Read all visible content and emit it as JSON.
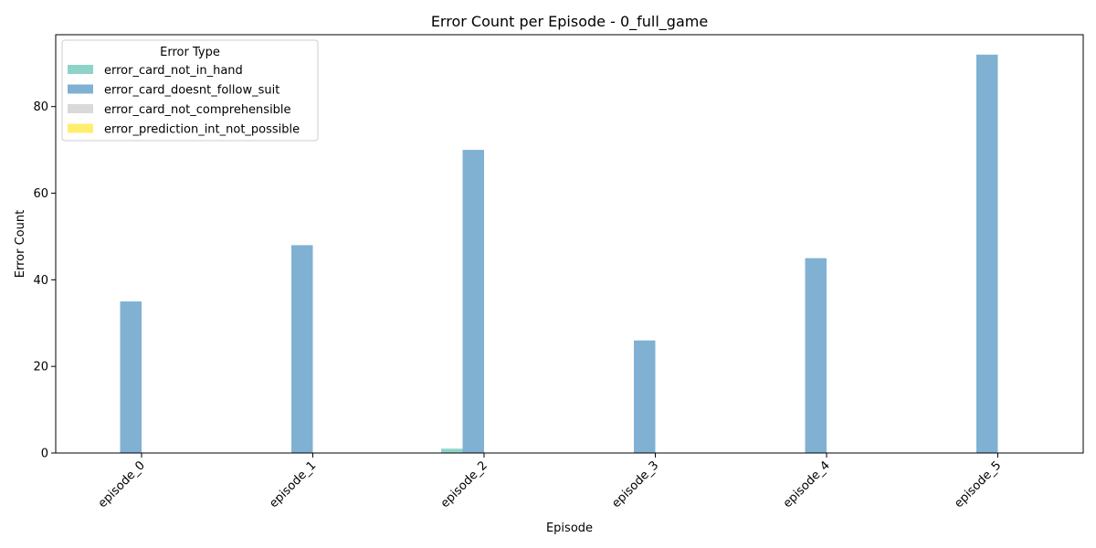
{
  "chart_data": {
    "type": "bar",
    "title": "Error Count per Episode - 0_full_game",
    "xlabel": "Episode",
    "ylabel": "Error Count",
    "categories": [
      "episode_0",
      "episode_1",
      "episode_2",
      "episode_3",
      "episode_4",
      "episode_5"
    ],
    "ylim": [
      0,
      96.6
    ],
    "yticks": [
      0,
      20,
      40,
      60,
      80
    ],
    "legend": {
      "title": "Error Type",
      "position": "top-left"
    },
    "grid": false,
    "series": [
      {
        "name": "error_card_not_in_hand",
        "color": "#8dd3c7",
        "values": [
          0,
          0,
          1,
          0,
          0,
          0
        ]
      },
      {
        "name": "error_card_doesnt_follow_suit",
        "color": "#80b1d3",
        "values": [
          35,
          48,
          70,
          26,
          45,
          92
        ]
      },
      {
        "name": "error_card_not_comprehensible",
        "color": "#d9d9d9",
        "values": [
          0,
          0,
          0,
          0,
          0,
          0
        ]
      },
      {
        "name": "error_prediction_int_not_possible",
        "color": "#ffed6f",
        "values": [
          0,
          0,
          0,
          0,
          0,
          0
        ]
      }
    ]
  }
}
